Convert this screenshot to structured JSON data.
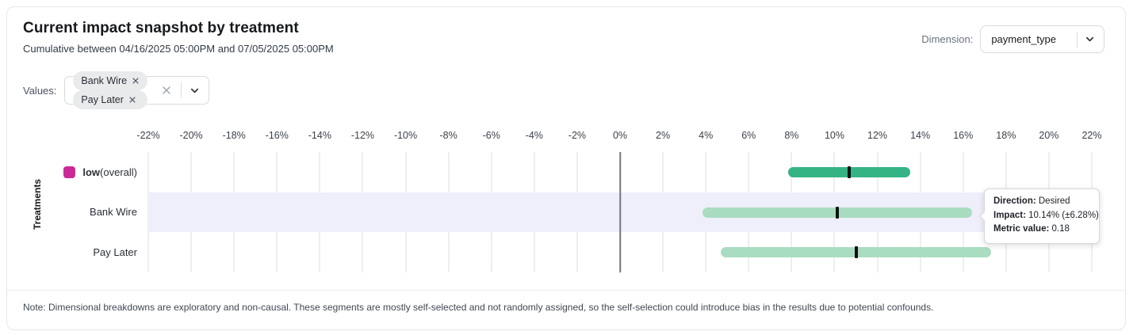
{
  "header": {
    "title": "Current impact snapshot by treatment",
    "subtitle": "Cumulative between 04/16/2025 05:00PM and 07/05/2025 05:00PM",
    "dimension_label": "Dimension:",
    "dimension_value": "payment_type"
  },
  "filters": {
    "values_label": "Values:",
    "chips": [
      {
        "label": "Bank Wire"
      },
      {
        "label": "Pay Later"
      }
    ]
  },
  "chart_data": {
    "type": "bar",
    "subtype": "horizontal-interval",
    "title": "Current impact snapshot by treatment",
    "xlabel": "",
    "ylabel": "Treatments",
    "xlim": [
      -22,
      22
    ],
    "ticks": [
      -22,
      -20,
      -18,
      -16,
      -14,
      -12,
      -10,
      -8,
      -6,
      -4,
      -2,
      0,
      2,
      4,
      6,
      8,
      10,
      12,
      14,
      16,
      18,
      20,
      22
    ],
    "tick_suffix": "%",
    "grid": true,
    "rows": [
      {
        "name": "low-overall",
        "label_parts": [
          {
            "text": "low",
            "bold": true
          },
          {
            "text": " (overall)",
            "bold": false
          }
        ],
        "swatch_color": "#cc2996",
        "impact_pct": 10.7,
        "margin_pct": 2.85,
        "bar_color": "#34b484",
        "highlighted": false
      },
      {
        "name": "bank-wire",
        "label_parts": [
          {
            "text": "Bank Wire",
            "bold": false
          }
        ],
        "impact_pct": 10.14,
        "margin_pct": 6.28,
        "bar_color": "#a9dcc1",
        "highlighted": true
      },
      {
        "name": "pay-later",
        "label_parts": [
          {
            "text": "Pay Later",
            "bold": false
          }
        ],
        "impact_pct": 11.0,
        "margin_pct": 6.3,
        "bar_color": "#a9dcc1",
        "highlighted": false
      }
    ],
    "marker_color": "#101114",
    "highlight_color": "#eeeffa"
  },
  "tooltip": {
    "lines": [
      {
        "label": "Direction:",
        "value": "Desired"
      },
      {
        "label": "Impact:",
        "value": "10.14% (±6.28%)"
      },
      {
        "label": "Metric value:",
        "value": "0.18"
      }
    ]
  },
  "note": {
    "text": "Note: Dimensional breakdowns are exploratory and non-causal. These segments are mostly self-selected and not randomly assigned, so the self-selection could introduce bias in the results due to potential confounds."
  }
}
